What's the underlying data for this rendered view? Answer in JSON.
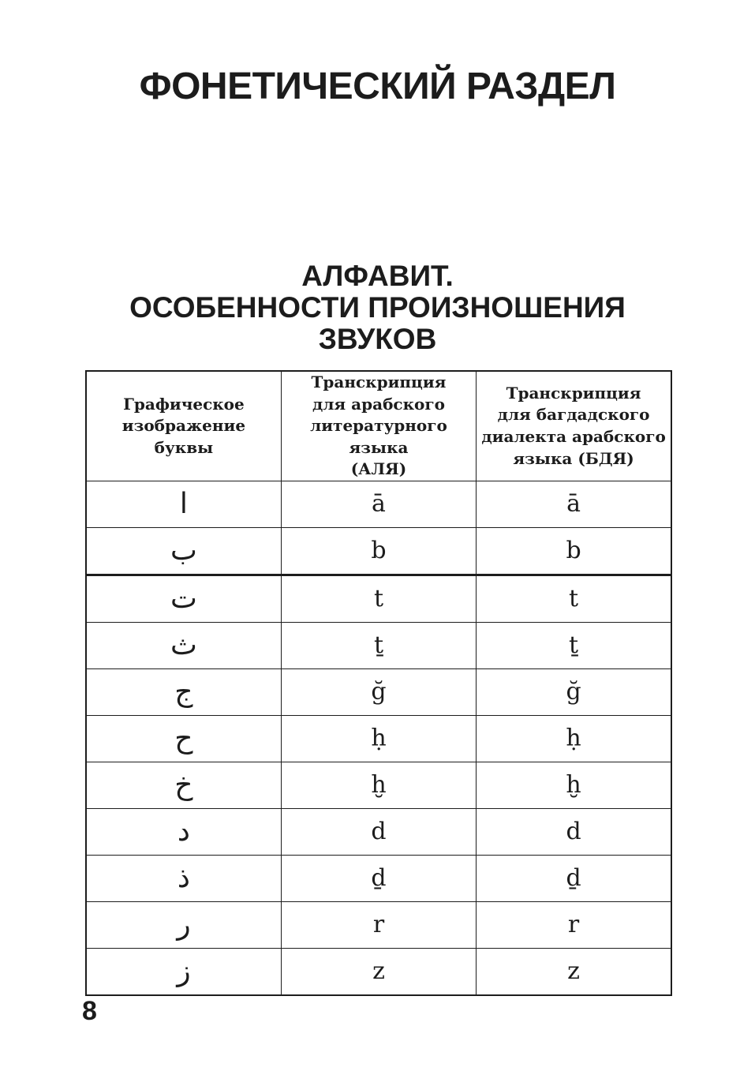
{
  "colors": {
    "ink": "#1c1c1c"
  },
  "page": {
    "title": "ФОНЕТИЧЕСКИЙ РАЗДЕЛ",
    "subtitle": "АЛФАВИТ.\nОСОБЕННОСТИ ПРОИЗНОШЕНИЯ\nЗВУКОВ",
    "page_number": "8"
  },
  "table": {
    "headers": [
      "Графическое\nизображение\nбуквы",
      "Транскрипция\nдля арабского\nлитературного языка\n(АЛЯ)",
      "Транскрипция\nдля багдадского\nдиалекта арабского\nязыка (БДЯ)"
    ],
    "rows": [
      {
        "letter": "ا",
        "alya": "ā",
        "bdya": "ā"
      },
      {
        "letter": "ب",
        "alya": "b",
        "bdya": "b"
      },
      {
        "letter": "ت",
        "alya": "t",
        "bdya": "t"
      },
      {
        "letter": "ث",
        "alya": "ṯ",
        "bdya": "ṯ"
      },
      {
        "letter": "ج",
        "alya": "ğ",
        "bdya": "ğ"
      },
      {
        "letter": "ح",
        "alya": "ḥ",
        "bdya": "ḥ"
      },
      {
        "letter": "خ",
        "alya": "ḫ",
        "bdya": "ḫ"
      },
      {
        "letter": "د",
        "alya": "d",
        "bdya": "d"
      },
      {
        "letter": "ذ",
        "alya": "ḏ",
        "bdya": "ḏ"
      },
      {
        "letter": "ر",
        "alya": "r",
        "bdya": "r"
      },
      {
        "letter": "ز",
        "alya": "z",
        "bdya": "z"
      }
    ]
  }
}
